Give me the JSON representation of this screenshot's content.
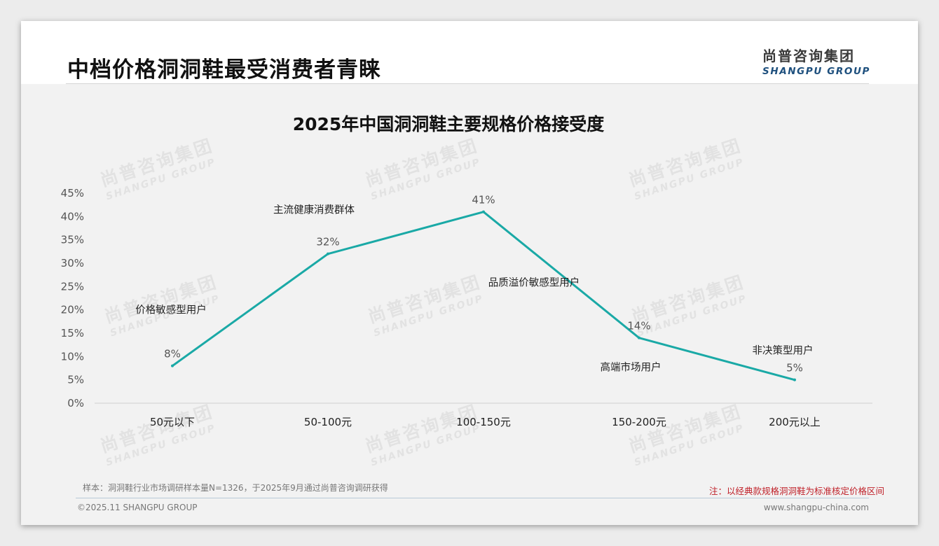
{
  "page": {
    "title": "中档价格洞洞鞋最受消费者青睐",
    "logo_cn": "尚普咨询集团",
    "logo_en": "SHANGPU GROUP",
    "watermark_cn": "尚普咨询集团",
    "watermark_en": "SHANGPU GROUP"
  },
  "chart_data": {
    "type": "line",
    "title": "2025年中国洞洞鞋主要规格价格接受度",
    "categories": [
      "50元以下",
      "50-100元",
      "100-150元",
      "150-200元",
      "200元以上"
    ],
    "values": [
      8,
      32,
      41,
      14,
      5
    ],
    "data_labels": [
      "8%",
      "32%",
      "41%",
      "14%",
      "5%"
    ],
    "ylim": [
      0,
      45
    ],
    "y_ticks": [
      "0%",
      "5%",
      "10%",
      "15%",
      "20%",
      "25%",
      "30%",
      "35%",
      "40%",
      "45%"
    ],
    "annotations": [
      "价格敏感型用户",
      "主流健康消费群体",
      "品质溢价敏感型用户",
      "高端市场用户",
      "非决策型用户"
    ],
    "line_color": "#1aa9a6",
    "grid": false,
    "legend": "none"
  },
  "footer": {
    "sample": "样本：洞洞鞋行业市场调研样本量N=1326，于2025年9月通过尚普咨询调研获得",
    "note": "注：以经典款规格洞洞鞋为标准核定价格区间",
    "copyright": "©2025.11 SHANGPU GROUP",
    "website": "www.shangpu-china.com"
  }
}
